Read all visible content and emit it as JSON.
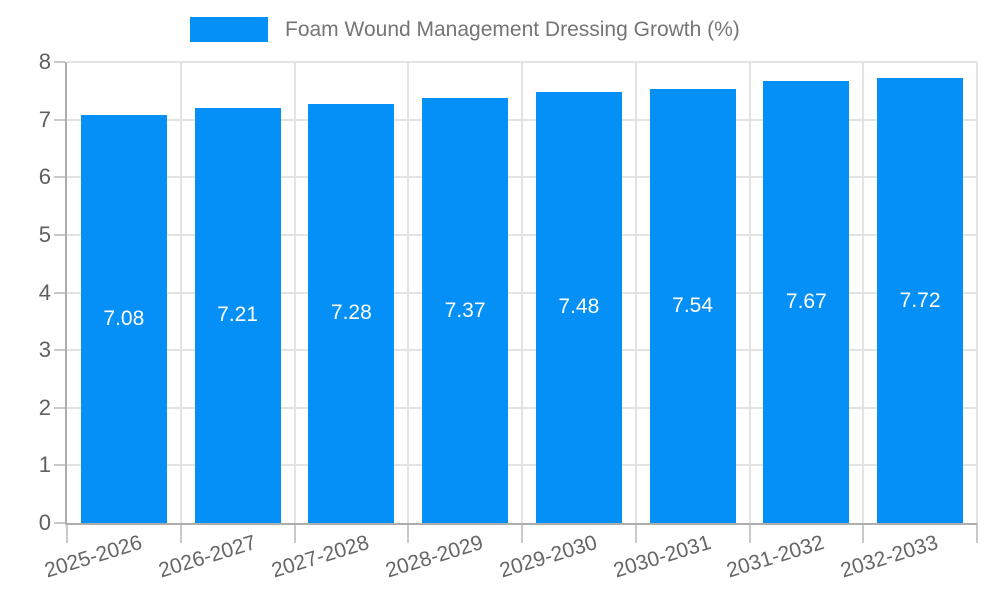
{
  "legend": {
    "items": [
      {
        "label": "Foam Wound Management Dressing Growth (%)",
        "color": "#0590f8"
      }
    ],
    "position": "top-center"
  },
  "chart_data": {
    "type": "bar",
    "title": "Foam Wound Management Dressing Growth (%)",
    "categories": [
      "2025-2026",
      "2026-2027",
      "2027-2028",
      "2028-2029",
      "2029-2030",
      "2030-2031",
      "2031-2032",
      "2032-2033"
    ],
    "series": [
      {
        "name": "Foam Wound Management Dressing Growth (%)",
        "values": [
          7.08,
          7.21,
          7.28,
          7.37,
          7.48,
          7.54,
          7.67,
          7.72
        ],
        "color": "#0590f8"
      }
    ],
    "value_labels": [
      "7.08",
      "7.21",
      "7.28",
      "7.37",
      "7.48",
      "7.54",
      "7.67",
      "7.72"
    ],
    "xlabel": "",
    "ylabel": "",
    "ylim": [
      0,
      8
    ],
    "yticks": [
      0,
      1,
      2,
      3,
      4,
      5,
      6,
      7,
      8
    ],
    "grid": true,
    "legend_position": "top",
    "x_tick_rotation_deg": -17
  },
  "colors": {
    "bar": "#0590f8",
    "grid_line": "#e3e3e3",
    "axis_line": "#adadad",
    "tick_mark": "#c9c9c9",
    "axis_text": "#5f5f5f",
    "legend_text": "#757575",
    "bar_label": "#ffffff",
    "background": "#ffffff"
  }
}
